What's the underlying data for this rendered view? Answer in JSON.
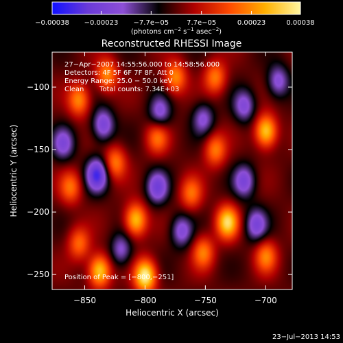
{
  "chart_data": {
    "type": "heatmap",
    "title": "Reconstructed RHESSI Image",
    "xlabel": "Heliocentric X (arcsec)",
    "ylabel": "Heliocentric Y (arcsec)",
    "xlim": [
      -877,
      -678
    ],
    "ylim": [
      -262,
      -72
    ],
    "x_ticks": [
      -850,
      -800,
      -750,
      -700
    ],
    "x_tick_labels": [
      "−850",
      "−800",
      "−750",
      "−700"
    ],
    "y_ticks": [
      -100,
      -150,
      -200,
      -250
    ],
    "y_tick_labels": [
      "−100",
      "−150",
      "−200",
      "−250"
    ],
    "colorbar": {
      "min": -0.00038,
      "max": 0.00038,
      "tick_values": [
        -0.00038,
        -0.00023,
        -7.7e-05,
        7.7e-05,
        0.00023,
        0.00038
      ],
      "tick_labels": [
        "−0.00038",
        "−0.00023",
        "−7.7e−05",
        "7.7e−05",
        "0.00023",
        "0.00038"
      ],
      "units_text": "(photons cm",
      "units_exp1": "−2",
      "units_mid": " s",
      "units_exp2": "−1",
      "units_end": " asec",
      "units_exp3": "−2",
      "units_close": ")",
      "colors": [
        "#1010ff",
        "#6a3ad8",
        "#8d4fd6",
        "#000000",
        "#b00000",
        "#ff4a00",
        "#ffb000",
        "#fff6a0"
      ]
    },
    "annotations": {
      "time_range": "27−Apr−2007 14:55:56.000 to 14:58:56.000",
      "detectors": "Detectors: 4F 5F 6F 7F 8F, Att 0",
      "energy_range": "Energy Range: 25.0 − 50.0 keV",
      "method": "Clean",
      "total_counts": "Total counts: 7.34E+03",
      "peak_position": "Position of Peak = [−800,−251]"
    },
    "peak": [
      -800,
      -251
    ],
    "blobs": [
      {
        "x": -800,
        "y": -251,
        "v": 1.0
      },
      {
        "x": -838,
        "y": -247,
        "v": 0.85
      },
      {
        "x": -752,
        "y": -232,
        "v": 0.55
      },
      {
        "x": -732,
        "y": -208,
        "v": 0.85
      },
      {
        "x": -808,
        "y": -206,
        "v": 0.8
      },
      {
        "x": -700,
        "y": -235,
        "v": 0.55
      },
      {
        "x": -855,
        "y": -110,
        "v": 0.6
      },
      {
        "x": -832,
        "y": -90,
        "v": 0.6
      },
      {
        "x": -775,
        "y": -92,
        "v": 0.6
      },
      {
        "x": -742,
        "y": -92,
        "v": 0.55
      },
      {
        "x": -700,
        "y": -135,
        "v": 0.85
      },
      {
        "x": -742,
        "y": -150,
        "v": 0.55
      },
      {
        "x": -790,
        "y": -140,
        "v": 0.5
      },
      {
        "x": -825,
        "y": -160,
        "v": 0.55
      },
      {
        "x": -862,
        "y": -180,
        "v": 0.5
      },
      {
        "x": -855,
        "y": -225,
        "v": 0.5
      },
      {
        "x": -762,
        "y": -185,
        "v": 0.5
      },
      {
        "x": -835,
        "y": -130,
        "v": -0.6
      },
      {
        "x": -840,
        "y": -170,
        "v": -0.8
      },
      {
        "x": -788,
        "y": -120,
        "v": -0.5
      },
      {
        "x": -790,
        "y": -180,
        "v": -0.6
      },
      {
        "x": -770,
        "y": -215,
        "v": -0.5
      },
      {
        "x": -718,
        "y": -115,
        "v": -0.5
      },
      {
        "x": -718,
        "y": -175,
        "v": -0.55
      },
      {
        "x": -708,
        "y": -210,
        "v": -0.55
      },
      {
        "x": -868,
        "y": -145,
        "v": -0.5
      },
      {
        "x": -820,
        "y": -230,
        "v": -0.45
      },
      {
        "x": -752,
        "y": -125,
        "v": -0.45
      },
      {
        "x": -690,
        "y": -95,
        "v": -0.5
      }
    ]
  },
  "footer": {
    "timestamp": "23−Jul−2013 14:53"
  }
}
